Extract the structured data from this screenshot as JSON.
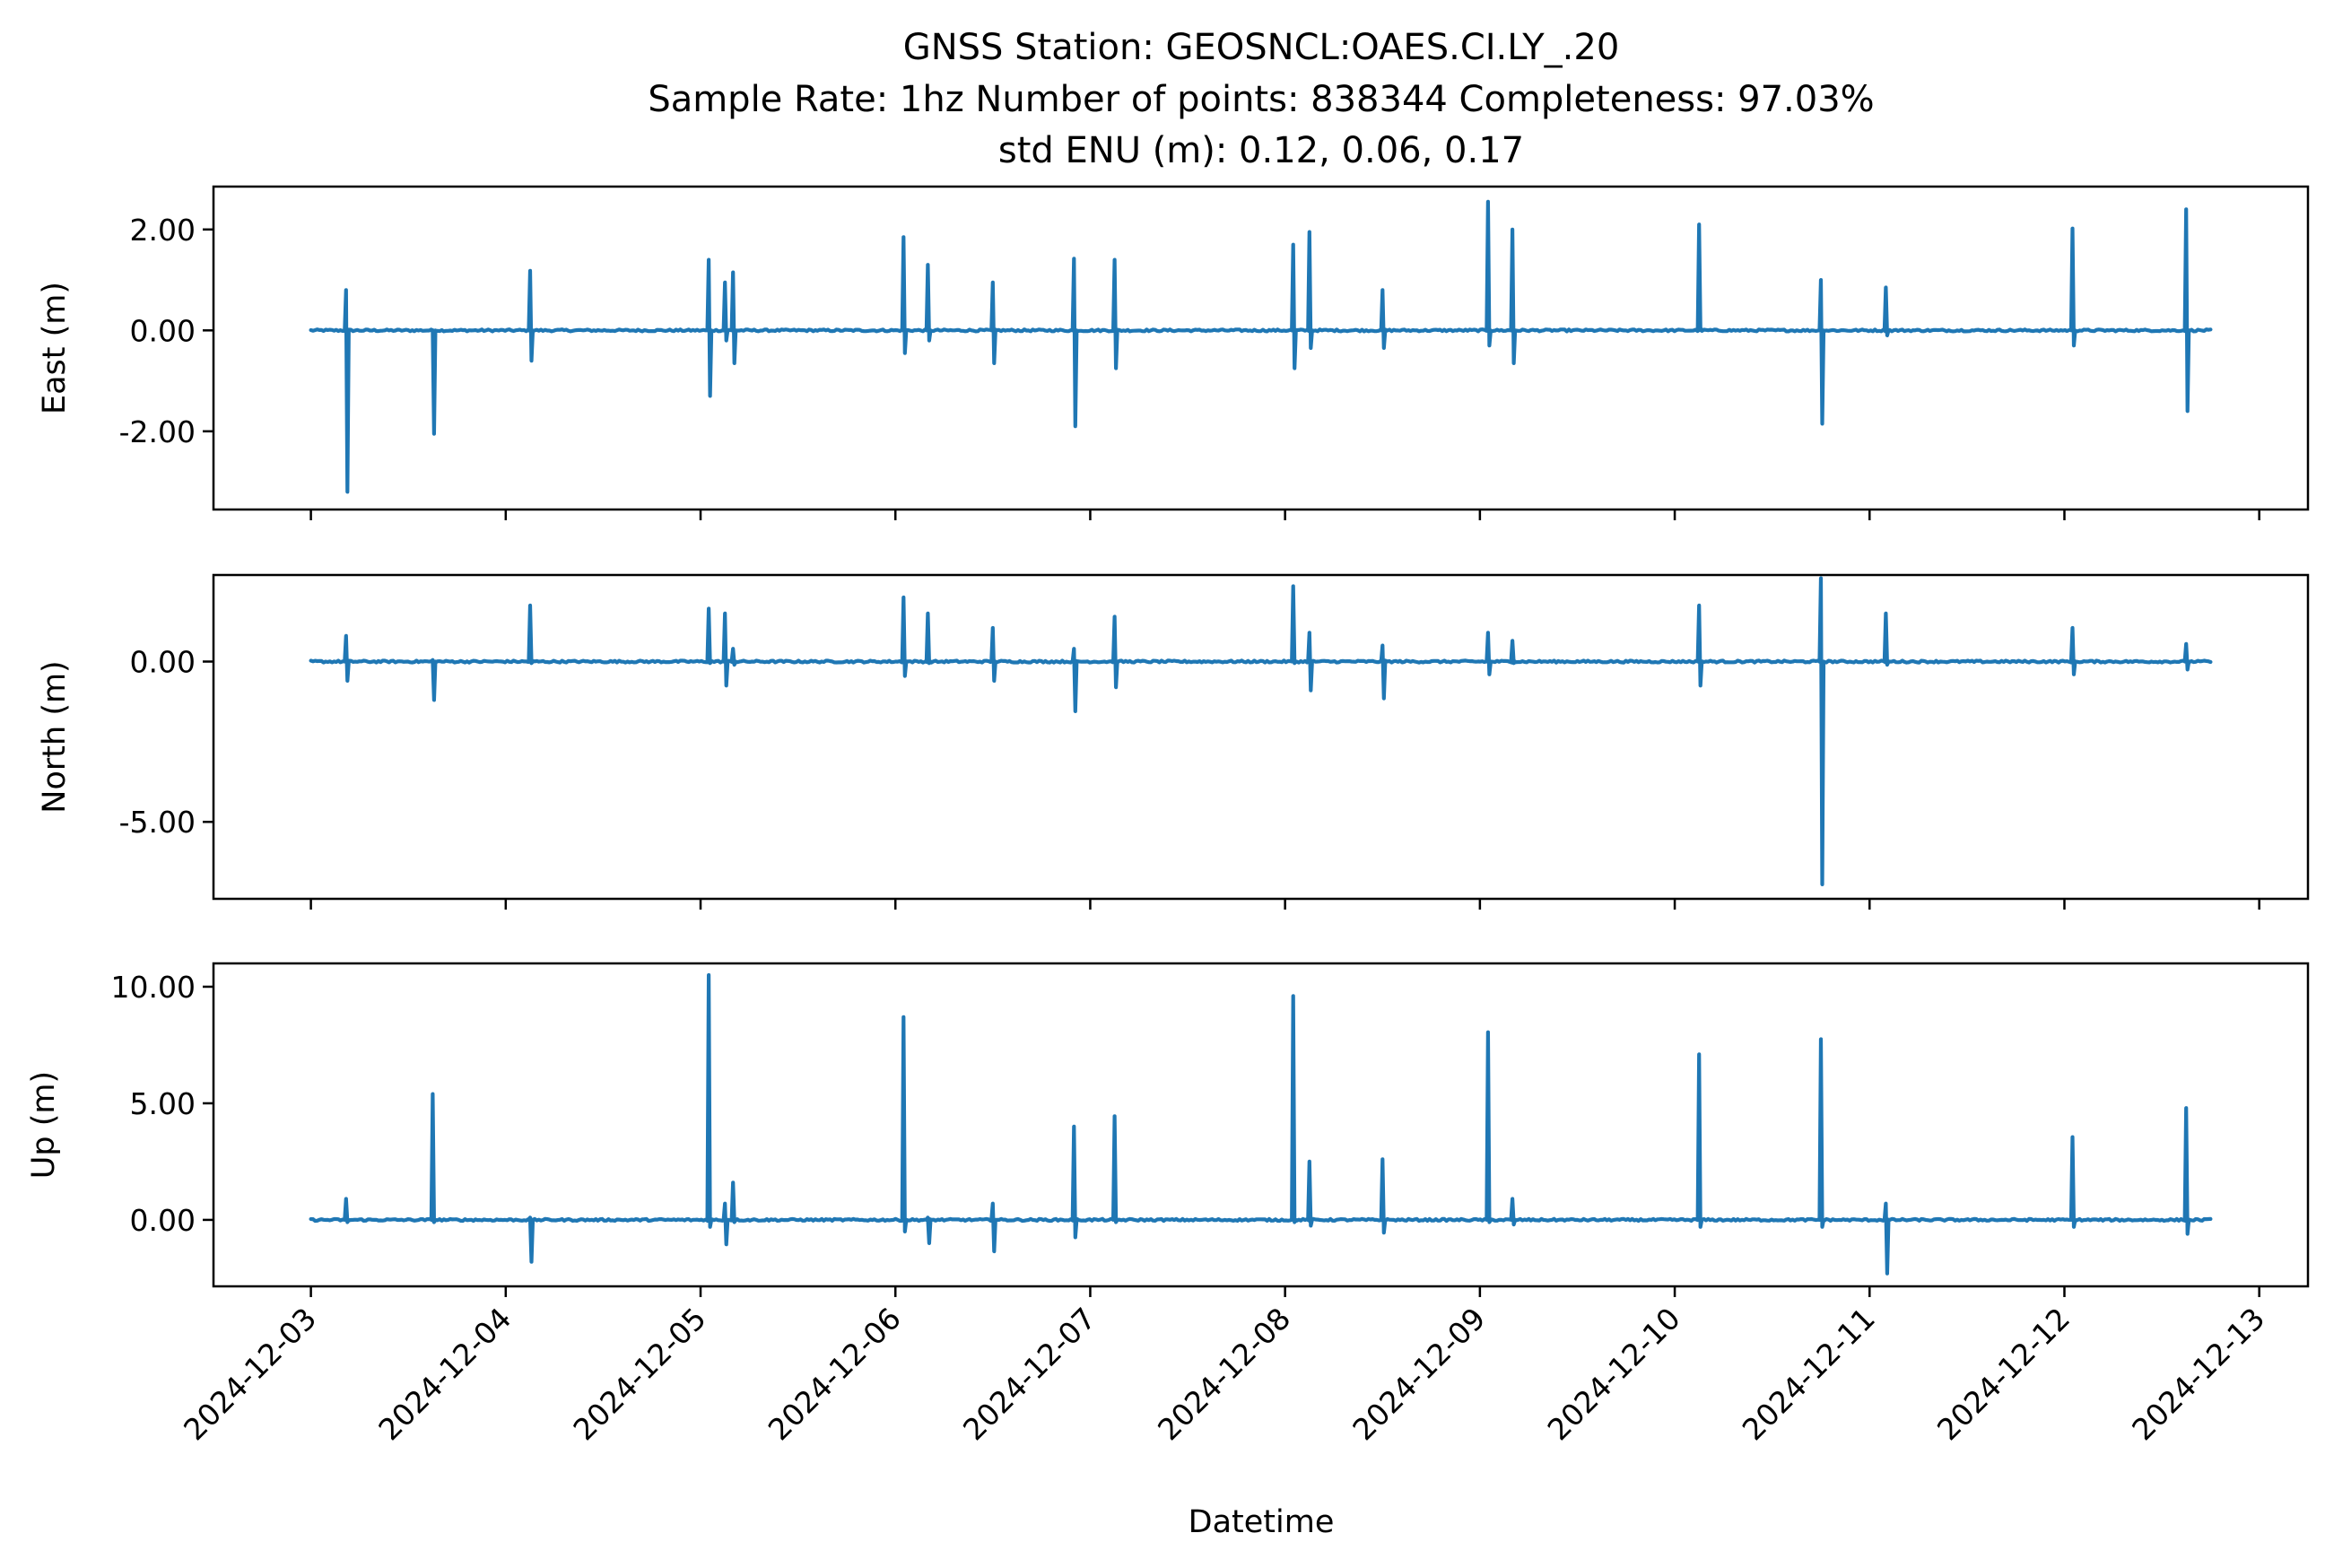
{
  "chart_data": {
    "type": "line",
    "title_lines": [
      "GNSS Station: GEOSNCL:OAES.CI.LY_.20",
      "Sample Rate: 1hz   Number of points: 838344    Completeness:  97.03%",
      "std ENU (m):  0.12, 0.06, 0.17"
    ],
    "xlabel": "Datetime",
    "x_ticks": [
      "2024-12-03",
      "2024-12-04",
      "2024-12-05",
      "2024-12-06",
      "2024-12-07",
      "2024-12-08",
      "2024-12-09",
      "2024-12-10",
      "2024-12-11",
      "2024-12-12",
      "2024-12-13"
    ],
    "x_range": [
      "2024-12-02 12:00",
      "2024-12-13 06:00"
    ],
    "data_range": [
      "2024-12-03 00:00",
      "2024-12-12 18:00"
    ],
    "color": "#1f77b4",
    "panels": [
      {
        "name": "east",
        "ylabel": "East (m)",
        "ylim": [
          -3.55,
          2.85
        ],
        "yticks": [
          2.0,
          0.0,
          -2.0
        ],
        "ytick_labels": [
          "2.00",
          "0.00",
          "-2.00"
        ],
        "spikes": [
          [
            "2024-12-03 04:20",
            0.8,
            -3.2
          ],
          [
            "2024-12-03 15:00",
            0.0,
            -2.05
          ],
          [
            "2024-12-04 03:00",
            1.18,
            -0.6
          ],
          [
            "2024-12-05 01:00",
            1.4,
            -1.3
          ],
          [
            "2024-12-05 03:00",
            0.95,
            -0.2
          ],
          [
            "2024-12-05 04:00",
            1.15,
            -0.65
          ],
          [
            "2024-12-06 01:00",
            1.85,
            -0.45
          ],
          [
            "2024-12-06 04:00",
            1.3,
            -0.2
          ],
          [
            "2024-12-06 12:00",
            0.95,
            -0.65
          ],
          [
            "2024-12-06 22:00",
            1.42,
            -1.9
          ],
          [
            "2024-12-07 03:00",
            1.4,
            -0.75
          ],
          [
            "2024-12-08 01:00",
            1.7,
            -0.75
          ],
          [
            "2024-12-08 03:00",
            1.95,
            -0.35
          ],
          [
            "2024-12-08 12:00",
            0.8,
            -0.35
          ],
          [
            "2024-12-09 01:00",
            2.55,
            -0.3
          ],
          [
            "2024-12-09 04:00",
            2.0,
            -0.65
          ],
          [
            "2024-12-10 03:00",
            2.1,
            0.05
          ],
          [
            "2024-12-10 18:00",
            1.0,
            -1.85
          ],
          [
            "2024-12-11 02:00",
            0.85,
            -0.1
          ],
          [
            "2024-12-12 01:00",
            2.02,
            -0.3
          ],
          [
            "2024-12-12 15:00",
            2.4,
            -1.6
          ]
        ]
      },
      {
        "name": "north",
        "ylabel": "North (m)",
        "ylim": [
          -7.4,
          2.7
        ],
        "yticks": [
          0.0,
          -5.0
        ],
        "ytick_labels": [
          "0.00",
          "-5.00"
        ],
        "spikes": [
          [
            "2024-12-03 04:20",
            0.8,
            -0.6
          ],
          [
            "2024-12-03 15:00",
            0.05,
            -1.2
          ],
          [
            "2024-12-04 03:00",
            1.75,
            -0.05
          ],
          [
            "2024-12-05 01:00",
            1.65,
            -0.05
          ],
          [
            "2024-12-05 03:00",
            1.5,
            -0.75
          ],
          [
            "2024-12-05 04:00",
            0.4,
            -0.1
          ],
          [
            "2024-12-06 01:00",
            2.0,
            -0.45
          ],
          [
            "2024-12-06 04:00",
            1.5,
            -0.05
          ],
          [
            "2024-12-06 12:00",
            1.05,
            -0.6
          ],
          [
            "2024-12-06 22:00",
            0.4,
            -1.55
          ],
          [
            "2024-12-07 03:00",
            1.4,
            -0.8
          ],
          [
            "2024-12-08 01:00",
            2.35,
            -0.05
          ],
          [
            "2024-12-08 03:00",
            0.9,
            -0.9
          ],
          [
            "2024-12-08 12:00",
            0.5,
            -1.15
          ],
          [
            "2024-12-09 01:00",
            0.9,
            -0.4
          ],
          [
            "2024-12-09 04:00",
            0.65,
            -0.05
          ],
          [
            "2024-12-10 03:00",
            1.75,
            -0.75
          ],
          [
            "2024-12-10 18:00",
            2.6,
            -6.95
          ],
          [
            "2024-12-11 02:00",
            1.5,
            -0.1
          ],
          [
            "2024-12-12 01:00",
            1.05,
            -0.4
          ],
          [
            "2024-12-12 15:00",
            0.55,
            -0.25
          ]
        ]
      },
      {
        "name": "up",
        "ylabel": "Up (m)",
        "ylim": [
          -2.85,
          11.0
        ],
        "yticks": [
          10.0,
          5.0,
          0.0
        ],
        "ytick_labels": [
          "10.00",
          "5.00",
          "0.00"
        ],
        "spikes": [
          [
            "2024-12-03 04:20",
            0.9,
            -0.1
          ],
          [
            "2024-12-03 15:00",
            5.4,
            -0.1
          ],
          [
            "2024-12-04 03:00",
            0.1,
            -1.8
          ],
          [
            "2024-12-05 01:00",
            10.5,
            -0.3
          ],
          [
            "2024-12-05 03:00",
            0.7,
            -1.05
          ],
          [
            "2024-12-05 04:00",
            1.6,
            -0.1
          ],
          [
            "2024-12-06 01:00",
            8.7,
            -0.5
          ],
          [
            "2024-12-06 04:00",
            0.1,
            -1.0
          ],
          [
            "2024-12-06 12:00",
            0.7,
            -1.35
          ],
          [
            "2024-12-06 22:00",
            4.0,
            -0.75
          ],
          [
            "2024-12-07 03:00",
            4.45,
            -0.1
          ],
          [
            "2024-12-08 01:00",
            9.6,
            -0.1
          ],
          [
            "2024-12-08 03:00",
            2.5,
            -0.25
          ],
          [
            "2024-12-08 12:00",
            2.6,
            -0.55
          ],
          [
            "2024-12-09 01:00",
            8.05,
            -0.1
          ],
          [
            "2024-12-09 04:00",
            0.9,
            -0.2
          ],
          [
            "2024-12-10 03:00",
            7.1,
            -0.3
          ],
          [
            "2024-12-10 18:00",
            7.75,
            -0.3
          ],
          [
            "2024-12-11 02:00",
            0.7,
            -2.3
          ],
          [
            "2024-12-12 01:00",
            3.55,
            -0.3
          ],
          [
            "2024-12-12 15:00",
            4.8,
            -0.6
          ]
        ]
      }
    ]
  }
}
